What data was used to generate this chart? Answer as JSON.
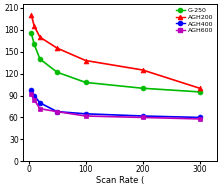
{
  "series": {
    "G-250": {
      "x": [
        5,
        10,
        20,
        50,
        100,
        200,
        300
      ],
      "y": [
        175,
        160,
        140,
        122,
        108,
        100,
        95
      ],
      "color": "#00bb00",
      "marker": "o"
    },
    "AGH200": {
      "x": [
        5,
        10,
        20,
        50,
        100,
        200,
        300
      ],
      "y": [
        200,
        185,
        170,
        155,
        138,
        125,
        100
      ],
      "color": "#ff0000",
      "marker": "^"
    },
    "AGH400": {
      "x": [
        5,
        10,
        20,
        50,
        100,
        200,
        300
      ],
      "y": [
        98,
        90,
        80,
        68,
        65,
        62,
        60
      ],
      "color": "#0000ff",
      "marker": "o"
    },
    "AGH600": {
      "x": [
        5,
        10,
        20,
        50,
        100,
        200,
        300
      ],
      "y": [
        92,
        84,
        72,
        68,
        62,
        60,
        58
      ],
      "color": "#bb00bb",
      "marker": "s"
    }
  },
  "xlabel": "Scan Rate (",
  "ylabel": "",
  "yticks": [
    0,
    30,
    60,
    90,
    120,
    150,
    180,
    210
  ],
  "xticks": [
    0,
    100,
    200,
    300
  ],
  "xlim": [
    -10,
    330
  ],
  "ylim": [
    0,
    215
  ],
  "title": "",
  "legend_order": [
    "G-250",
    "AGH200",
    "AGH400",
    "AGH600"
  ],
  "background_top": "#d0d0d0",
  "background_bottom": "#ffffff",
  "plot_bg": "#e8e8e8"
}
